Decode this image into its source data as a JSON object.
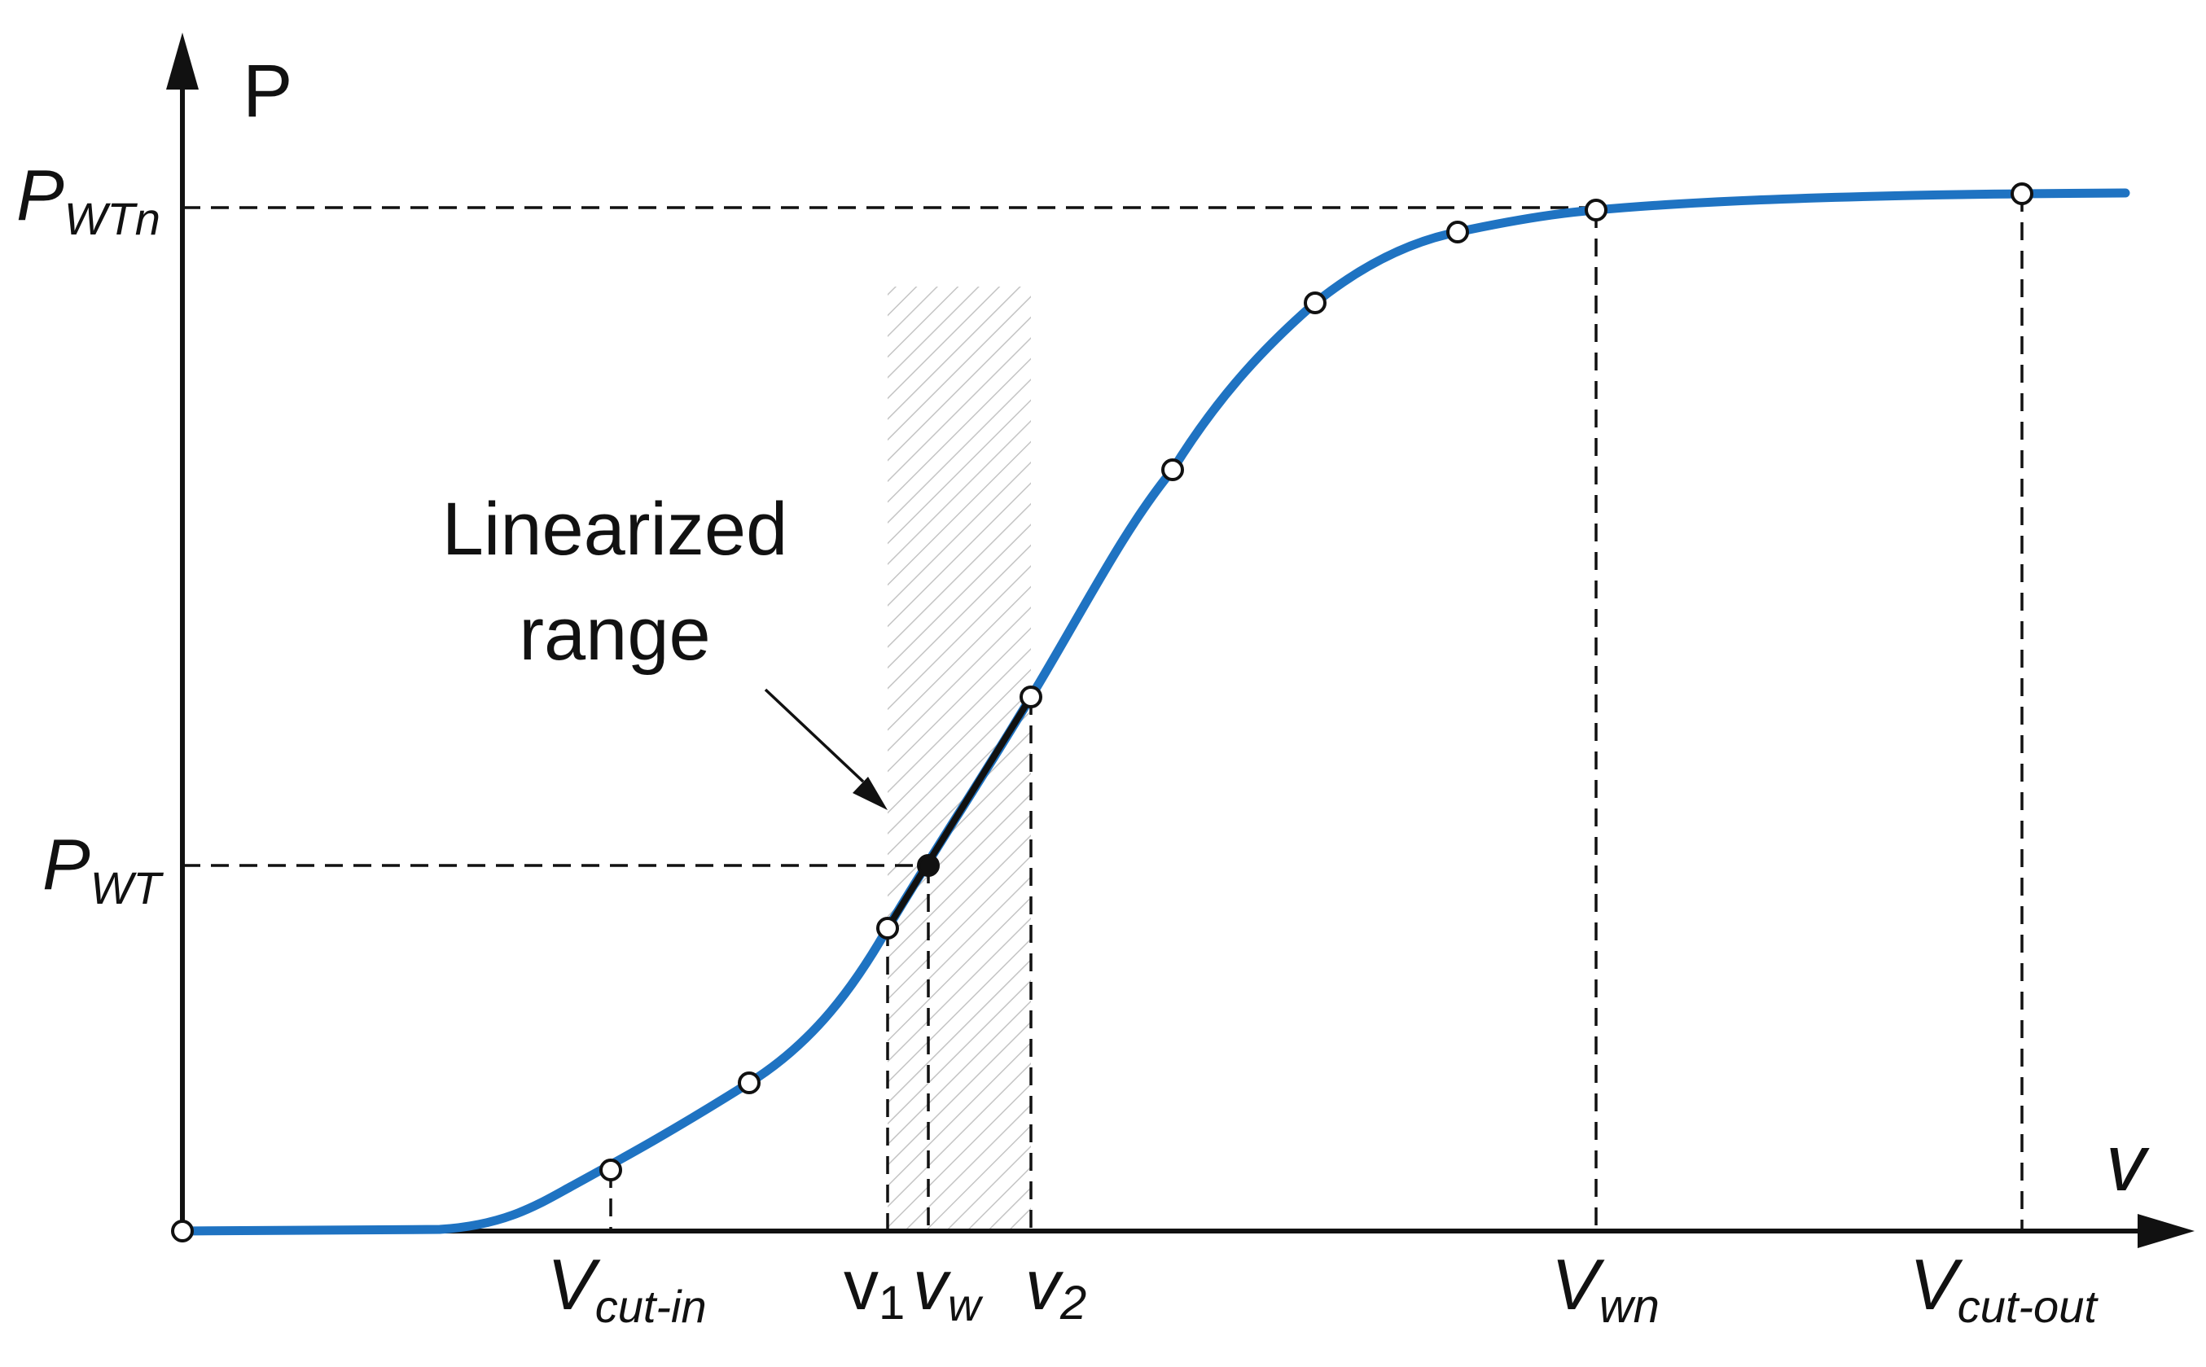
{
  "axes": {
    "y_label": "P",
    "x_label": "v"
  },
  "annotation": {
    "line1": "Linearized",
    "line2": "range"
  },
  "y_markers": [
    {
      "main": "P",
      "sub": "WTn"
    },
    {
      "main": "P",
      "sub": "WT"
    }
  ],
  "x_markers": [
    {
      "main": "V",
      "sub": "cut-in",
      "italic_main": true
    },
    {
      "main": "v",
      "sub": "1",
      "italic_main": false
    },
    {
      "main": "v",
      "sub": "w",
      "italic_main": true
    },
    {
      "main": "v",
      "sub": "2",
      "italic_main": true
    },
    {
      "main": "V",
      "sub": "wn",
      "italic_main": true
    },
    {
      "main": "V",
      "sub": "cut-out",
      "italic_main": true
    }
  ],
  "colors": {
    "curve": "#1f73c2",
    "axis": "#111111",
    "hatch": "#bdbdbd"
  }
}
